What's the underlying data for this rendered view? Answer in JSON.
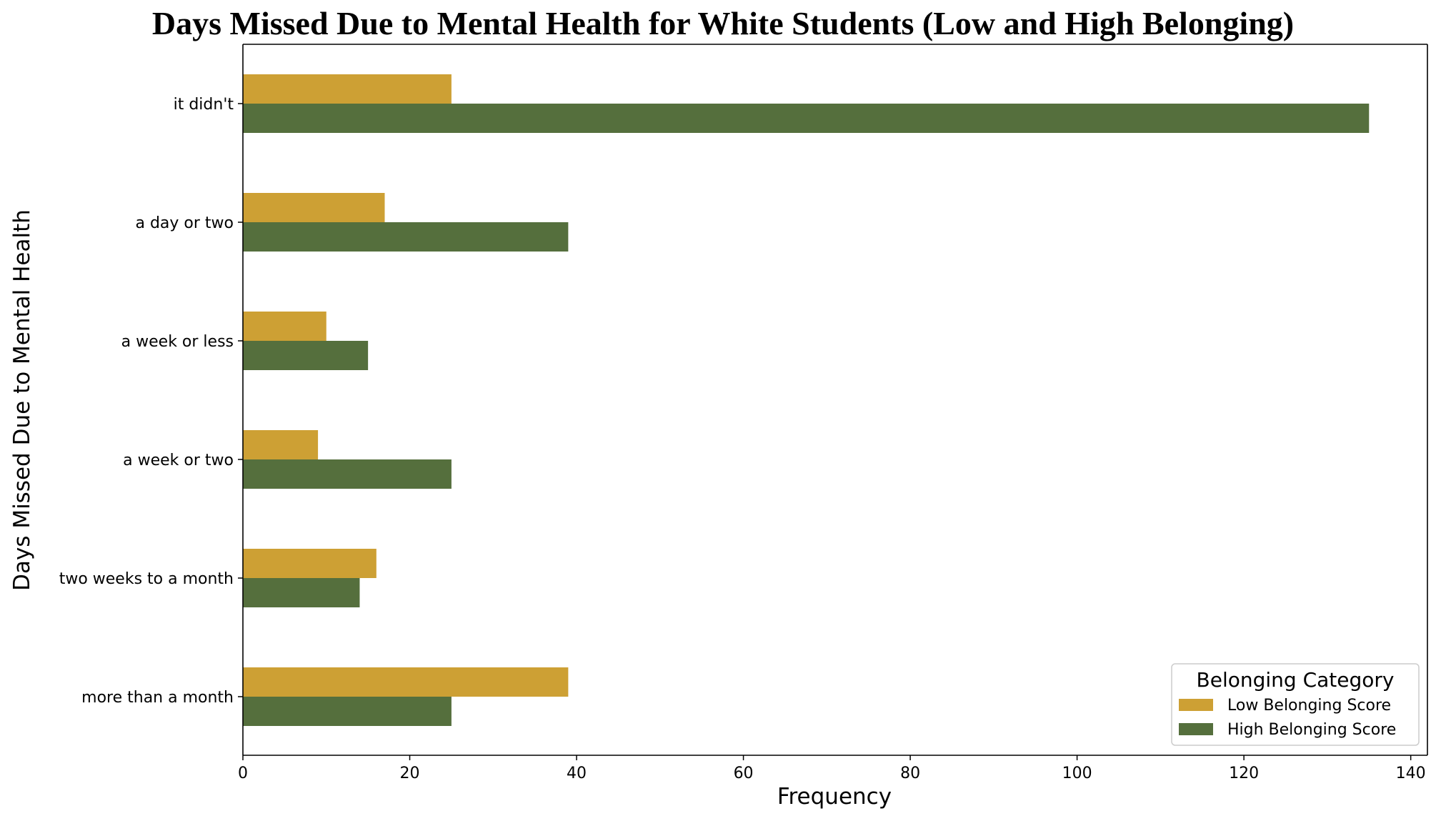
{
  "chart_data": {
    "type": "bar",
    "orientation": "horizontal",
    "title": "Days Missed Due to Mental Health for White Students (Low and High Belonging)",
    "xlabel": "Frequency",
    "ylabel": "Days Missed Due to Mental Health",
    "categories": [
      "it didn't",
      "a day or two",
      "a week or less",
      "a week or two",
      "two weeks to a month",
      "more than a month"
    ],
    "series": [
      {
        "name": "Low Belonging Score",
        "color": "#CDA034",
        "values": [
          25,
          17,
          10,
          9,
          16,
          39
        ]
      },
      {
        "name": "High Belonging Score",
        "color": "#556F3D",
        "values": [
          135,
          39,
          15,
          25,
          14,
          25
        ]
      }
    ],
    "xlim": [
      0,
      142
    ],
    "xticks": [
      0,
      20,
      40,
      60,
      80,
      100,
      120,
      140
    ],
    "grid": false,
    "legend": {
      "title": "Belonging Category",
      "position": "bottom-right"
    }
  }
}
